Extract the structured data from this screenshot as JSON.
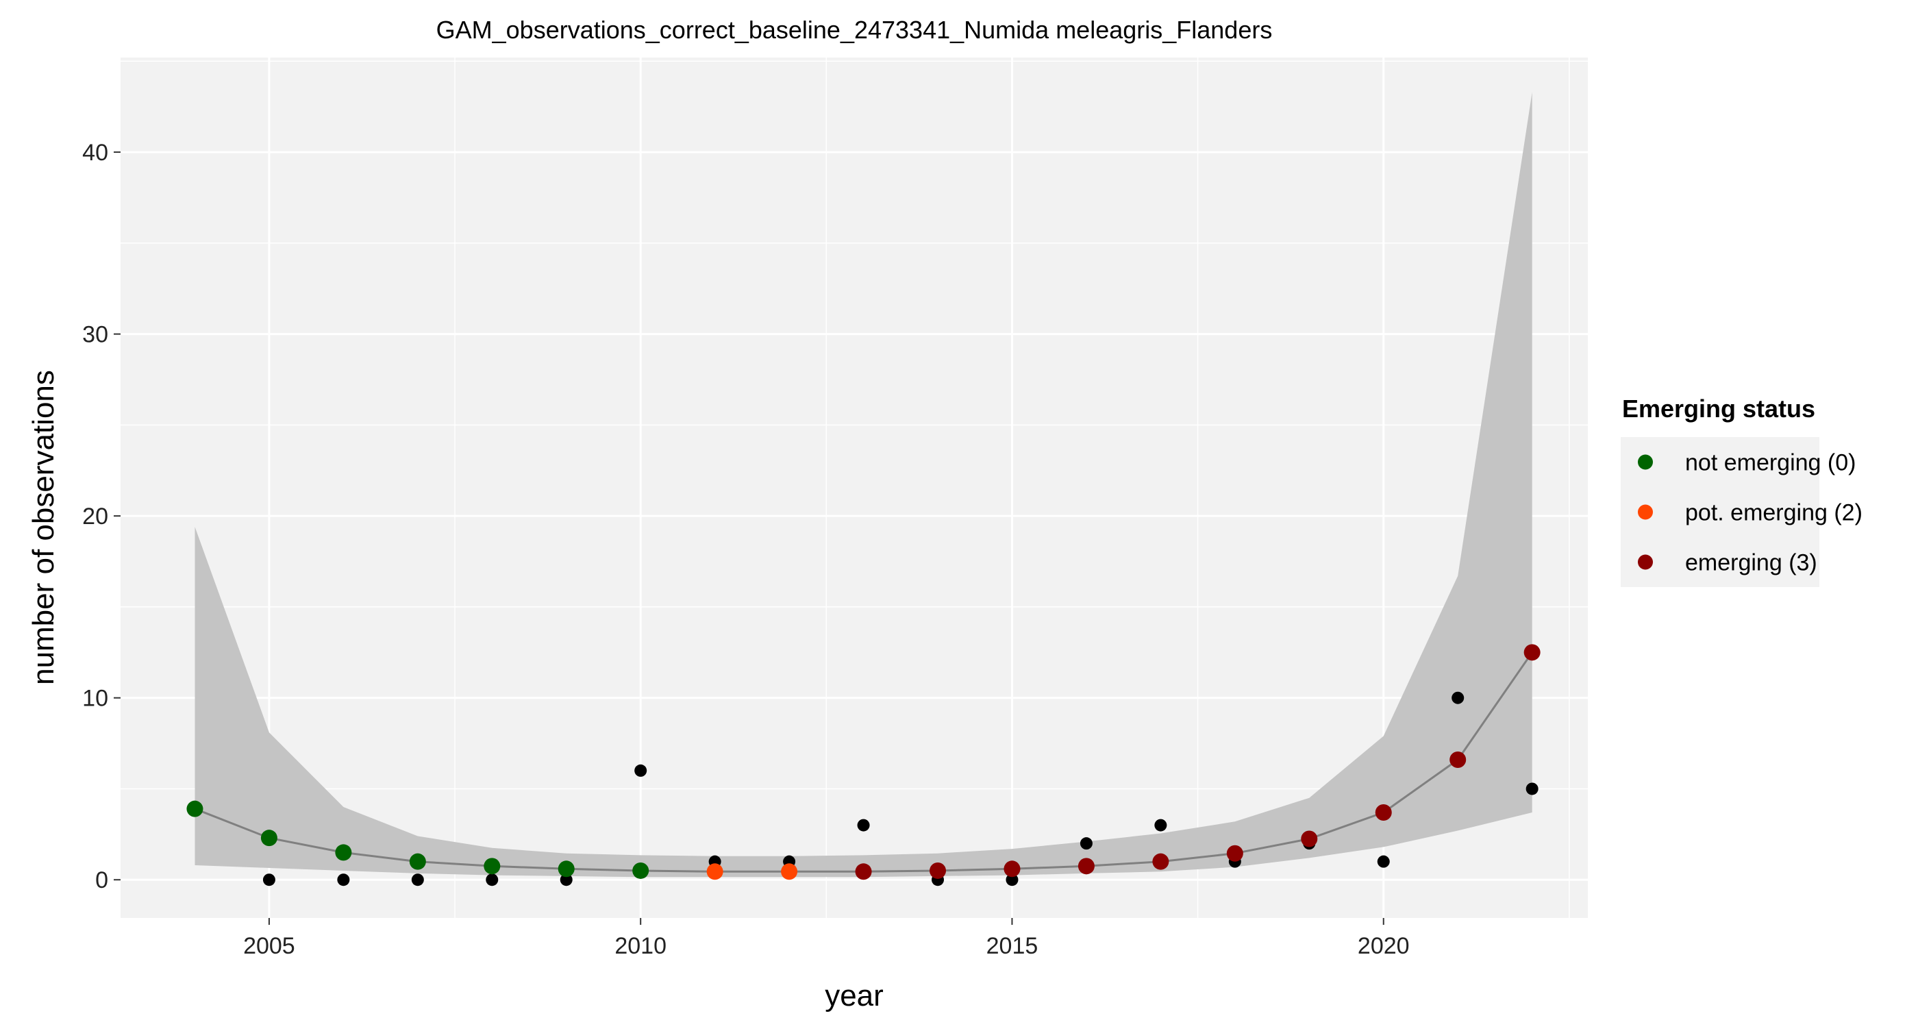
{
  "chart_data": {
    "type": "line",
    "title": "GAM_observations_correct_baseline_2473341_Numida meleagris_Flanders",
    "xlabel": "year",
    "ylabel": "number of observations",
    "xlim": [
      2003,
      2022.75
    ],
    "ylim": [
      -2.1,
      45.2
    ],
    "x_ticks": [
      2005,
      2010,
      2015,
      2020
    ],
    "y_ticks": [
      0,
      10,
      20,
      30,
      40
    ],
    "grid": true,
    "legend": {
      "title": "Emerging status",
      "placement": "right",
      "entries": [
        {
          "label": "not emerging (0)",
          "color": "#006400"
        },
        {
          "label": "pot. emerging (2)",
          "color": "#FF4500"
        },
        {
          "label": "emerging (3)",
          "color": "#8B0000"
        }
      ]
    },
    "colors": {
      "panel_background": "#f2f2f2",
      "grid": "#ffffff",
      "ribbon": "#c4c4c4",
      "fit_line": "#808080",
      "observed_points": "#000000"
    },
    "observed": {
      "x": [
        2004,
        2005,
        2006,
        2007,
        2008,
        2009,
        2010,
        2011,
        2012,
        2013,
        2014,
        2015,
        2016,
        2017,
        2018,
        2019,
        2020,
        2021,
        2022
      ],
      "y": [
        4,
        0,
        0,
        0,
        0,
        0,
        6,
        1,
        1,
        3,
        0,
        0,
        2,
        3,
        1,
        2,
        1,
        10,
        5
      ]
    },
    "fit": {
      "x": [
        2004,
        2005,
        2006,
        2007,
        2008,
        2009,
        2010,
        2011,
        2012,
        2013,
        2014,
        2015,
        2016,
        2017,
        2018,
        2019,
        2020,
        2021,
        2022
      ],
      "y": [
        3.9,
        2.3,
        1.5,
        1.0,
        0.75,
        0.6,
        0.5,
        0.45,
        0.45,
        0.45,
        0.5,
        0.6,
        0.75,
        1.0,
        1.45,
        2.25,
        3.7,
        6.6,
        12.5
      ],
      "lower": [
        0.8,
        0.65,
        0.5,
        0.35,
        0.25,
        0.2,
        0.15,
        0.15,
        0.15,
        0.15,
        0.2,
        0.25,
        0.35,
        0.45,
        0.7,
        1.2,
        1.8,
        2.7,
        3.7
      ],
      "upper": [
        19.4,
        8.1,
        4.0,
        2.4,
        1.75,
        1.45,
        1.35,
        1.3,
        1.3,
        1.35,
        1.45,
        1.7,
        2.1,
        2.55,
        3.2,
        4.5,
        7.9,
        16.7,
        43.3
      ],
      "status": [
        0,
        0,
        0,
        0,
        0,
        0,
        0,
        2,
        2,
        3,
        3,
        3,
        3,
        3,
        3,
        3,
        3,
        3,
        3
      ]
    }
  }
}
